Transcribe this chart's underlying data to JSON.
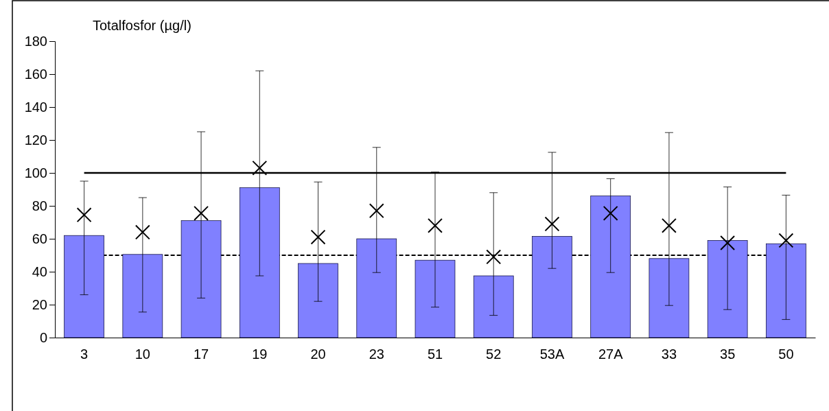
{
  "chart_data": {
    "type": "bar",
    "ylabel": "Totalfosfor (µg/l)",
    "categories": [
      "3",
      "10",
      "17",
      "19",
      "20",
      "23",
      "51",
      "52",
      "53A",
      "27A",
      "33",
      "35",
      "50"
    ],
    "series": [
      {
        "color": "#8080ff",
        "values": [
          62,
          50.5,
          71,
          91,
          45,
          60,
          47,
          37.5,
          61.5,
          86,
          48,
          59,
          57
        ],
        "errors": [
          [
            26,
            95
          ],
          [
            15.5,
            85
          ],
          [
            24,
            125
          ],
          [
            37.5,
            162
          ],
          [
            22,
            94.5
          ],
          [
            39.5,
            115.5
          ],
          [
            18.5,
            100.5
          ],
          [
            13.5,
            88
          ],
          [
            42,
            112.5
          ],
          [
            39.5,
            96.5
          ],
          [
            19.5,
            124.5
          ],
          [
            17,
            91.5
          ],
          [
            11,
            86.5
          ]
        ]
      },
      {
        "type": "scatter",
        "color": "#000000",
        "marker": "cross",
        "x": [
          "3",
          "10",
          "17",
          "19",
          "20",
          "23",
          "51",
          "52",
          "53A",
          "27A",
          "33",
          "35",
          "50"
        ],
        "values": [
          74.5,
          64,
          75.5,
          103,
          61,
          77,
          68,
          49,
          69,
          75.5,
          68,
          57.5,
          59
        ]
      }
    ],
    "ylim": [
      0,
      180
    ],
    "yticks": [
      0,
      20,
      40,
      60,
      80,
      100,
      120,
      140,
      160,
      180
    ],
    "grid": false,
    "ref_lines": [
      {
        "axis": "y",
        "value": 100,
        "color": "#000000",
        "line_style": "solid"
      },
      {
        "axis": "y",
        "value": 50,
        "color": "#000000",
        "line_style": "dashed"
      }
    ]
  }
}
